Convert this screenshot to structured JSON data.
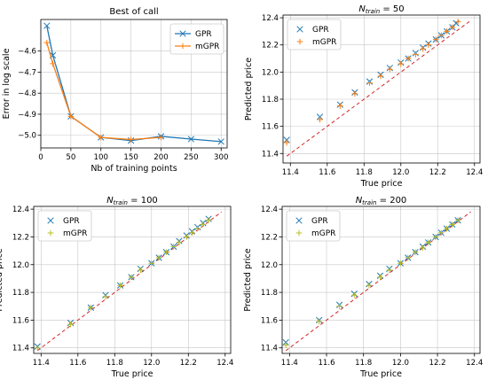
{
  "chart_data": [
    {
      "type": "line",
      "title": "Best of call",
      "xlabel": "Nb of training points",
      "ylabel": "Error in log scale",
      "xlim": [
        0,
        310
      ],
      "ylim": [
        -5.06,
        -4.45
      ],
      "xticks": [
        "0",
        "50",
        "100",
        "150",
        "200",
        "250",
        "300"
      ],
      "yticks": [
        "-4.6",
        "-4.7",
        "-4.8",
        "-4.9",
        "-5.0"
      ],
      "legend": "top-right",
      "grid": true,
      "series": [
        {
          "name": "GPR",
          "color": "#1f77b4",
          "marker": "x",
          "x": [
            10,
            20,
            50,
            100,
            150,
            200,
            250,
            300
          ],
          "y": [
            -4.48,
            -4.62,
            -4.91,
            -5.01,
            -5.025,
            -5.005,
            -5.018,
            -5.03
          ]
        },
        {
          "name": "mGPR",
          "color": "#ff7f0e",
          "marker": "+",
          "x": [
            10,
            20,
            50,
            100,
            150,
            200
          ],
          "y": [
            -4.56,
            -4.66,
            -4.91,
            -5.01,
            -5.02,
            -5.01
          ]
        }
      ]
    },
    {
      "type": "scatter",
      "title": "N_train = 50",
      "title_base": "N",
      "title_sub": "train",
      "title_rest": " = 50",
      "xlabel": "True price",
      "ylabel": "Predicted price",
      "xlim": [
        11.36,
        12.43
      ],
      "ylim": [
        11.33,
        12.42
      ],
      "xticks": [
        "11.4",
        "11.6",
        "11.8",
        "12.0",
        "12.2",
        "12.4"
      ],
      "yticks": [
        "11.4",
        "11.6",
        "11.8",
        "12.0",
        "12.2",
        "12.4"
      ],
      "legend": "top-left",
      "grid": true,
      "diagonal_color": "#d62728",
      "series": [
        {
          "name": "GPR",
          "color": "#1f77b4",
          "marker": "x",
          "x": [
            11.38,
            11.56,
            11.67,
            11.75,
            11.83,
            11.89,
            11.94,
            12.0,
            12.04,
            12.08,
            12.12,
            12.15,
            12.19,
            12.22,
            12.25,
            12.28,
            12.3
          ],
          "y": [
            11.5,
            11.67,
            11.76,
            11.85,
            11.93,
            11.98,
            12.03,
            12.07,
            12.1,
            12.14,
            12.18,
            12.21,
            12.24,
            12.27,
            12.3,
            12.33,
            12.36
          ]
        },
        {
          "name": "mGPR",
          "color": "#ff7f0e",
          "marker": "+",
          "x": [
            11.38,
            11.56,
            11.67,
            11.75,
            11.83,
            11.89,
            11.94,
            12.0,
            12.04,
            12.08,
            12.12,
            12.15,
            12.19,
            12.22,
            12.25,
            12.28,
            12.31
          ],
          "y": [
            11.48,
            11.65,
            11.75,
            11.84,
            11.92,
            11.97,
            12.02,
            12.06,
            12.1,
            12.13,
            12.17,
            12.2,
            12.24,
            12.27,
            12.3,
            12.33,
            12.37
          ]
        }
      ]
    },
    {
      "type": "scatter",
      "title": "N_train = 100",
      "title_base": "N",
      "title_sub": "train",
      "title_rest": " = 100",
      "xlabel": "True price",
      "ylabel": "Predicted price",
      "xlim": [
        11.36,
        12.43
      ],
      "ylim": [
        11.36,
        12.42
      ],
      "xticks": [
        "11.4",
        "11.6",
        "11.8",
        "12.0",
        "12.2",
        "12.4"
      ],
      "yticks": [
        "11.4",
        "11.6",
        "11.8",
        "12.0",
        "12.2",
        "12.4"
      ],
      "legend": "top-left",
      "grid": true,
      "diagonal_color": "#d62728",
      "series": [
        {
          "name": "GPR",
          "color": "#1f77b4",
          "marker": "x",
          "x": [
            11.38,
            11.56,
            11.67,
            11.75,
            11.83,
            11.89,
            11.94,
            12.0,
            12.04,
            12.08,
            12.12,
            12.15,
            12.19,
            12.22,
            12.25,
            12.28,
            12.31
          ],
          "y": [
            11.41,
            11.58,
            11.69,
            11.78,
            11.85,
            11.91,
            11.97,
            12.01,
            12.05,
            12.09,
            12.13,
            12.17,
            12.21,
            12.24,
            12.27,
            12.3,
            12.33
          ]
        },
        {
          "name": "mGPR",
          "color": "#bcbd22",
          "marker": "+",
          "x": [
            11.38,
            11.56,
            11.67,
            11.75,
            11.83,
            11.89,
            11.94,
            12.0,
            12.04,
            12.08,
            12.12,
            12.15,
            12.19,
            12.22,
            12.25,
            12.28,
            12.31
          ],
          "y": [
            11.4,
            11.57,
            11.69,
            11.77,
            11.85,
            11.91,
            11.96,
            12.01,
            12.05,
            12.09,
            12.13,
            12.16,
            12.2,
            12.23,
            12.26,
            12.29,
            12.32
          ]
        }
      ]
    },
    {
      "type": "scatter",
      "title": "N_train = 200",
      "title_base": "N",
      "title_sub": "train",
      "title_rest": " = 200",
      "xlabel": "True price",
      "ylabel": "Predicted price",
      "xlim": [
        11.36,
        12.43
      ],
      "ylim": [
        11.36,
        12.42
      ],
      "xticks": [
        "11.4",
        "11.6",
        "11.8",
        "12.0",
        "12.2",
        "12.4"
      ],
      "yticks": [
        "11.4",
        "11.6",
        "11.8",
        "12.0",
        "12.2",
        "12.4"
      ],
      "legend": "top-left",
      "grid": true,
      "diagonal_color": "#d62728",
      "series": [
        {
          "name": "GPR",
          "color": "#1f77b4",
          "marker": "x",
          "x": [
            11.38,
            11.56,
            11.67,
            11.75,
            11.83,
            11.89,
            11.94,
            12.0,
            12.04,
            12.08,
            12.12,
            12.15,
            12.19,
            12.22,
            12.25,
            12.28,
            12.31
          ],
          "y": [
            11.44,
            11.6,
            11.71,
            11.79,
            11.86,
            11.92,
            11.97,
            12.01,
            12.05,
            12.09,
            12.13,
            12.16,
            12.2,
            12.23,
            12.26,
            12.29,
            12.32
          ]
        },
        {
          "name": "mGPR",
          "color": "#bcbd22",
          "marker": "+",
          "x": [
            11.38,
            11.56,
            11.67,
            11.75,
            11.83,
            11.89,
            11.94,
            12.0,
            12.04,
            12.08,
            12.12,
            12.15,
            12.19,
            12.22,
            12.25,
            12.28,
            12.31
          ],
          "y": [
            11.42,
            11.59,
            11.7,
            11.78,
            11.85,
            11.91,
            11.96,
            12.01,
            12.05,
            12.09,
            12.12,
            12.16,
            12.2,
            12.23,
            12.26,
            12.29,
            12.32
          ]
        }
      ]
    }
  ]
}
